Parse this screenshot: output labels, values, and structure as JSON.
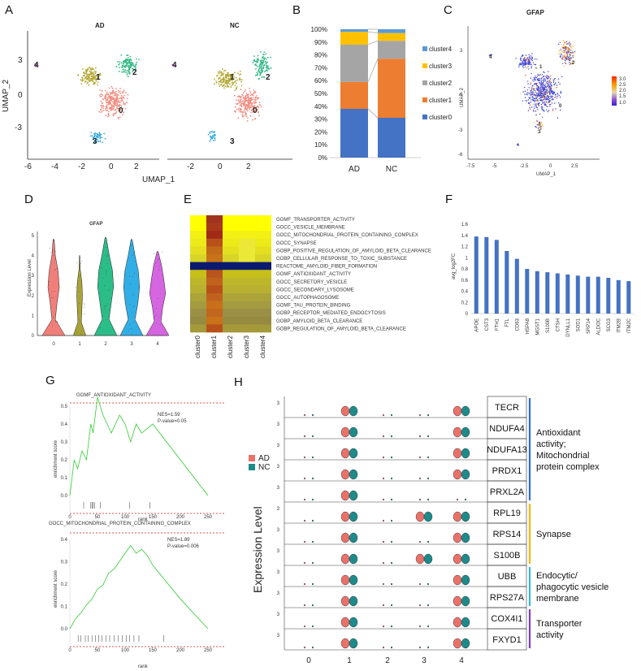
{
  "labels": {
    "A": "A",
    "B": "B",
    "C": "C",
    "D": "D",
    "E": "E",
    "F": "F",
    "G": "G",
    "H": "H"
  },
  "panelA": {
    "title_left": "AD",
    "title_right": "NC",
    "xlabel": "UMAP_1",
    "ylabel": "UMAP_2",
    "yticks": [
      "3",
      "0",
      "-3"
    ],
    "xticks_left": [
      "-6",
      "-4",
      "-2",
      "0",
      "2"
    ],
    "xticks_right": [
      "-2",
      "0",
      "2"
    ],
    "clusters": [
      "0",
      "1",
      "2",
      "3",
      "4"
    ],
    "colors": {
      "c0": "#f28e82",
      "c1": "#b5a835",
      "c2": "#2fb783",
      "c3": "#35a9de",
      "c4": "#d36fe0"
    }
  },
  "chart_data": [
    {
      "id": "B",
      "type": "bar",
      "stacked": true,
      "categories": [
        "AD",
        "NC"
      ],
      "series": [
        {
          "name": "cluster0",
          "color": "#4472c4",
          "values": [
            38,
            31
          ]
        },
        {
          "name": "cluster1",
          "color": "#ed7d31",
          "values": [
            21,
            46
          ]
        },
        {
          "name": "cluster2",
          "color": "#a5a5a5",
          "values": [
            29,
            14
          ]
        },
        {
          "name": "cluster3",
          "color": "#ffc000",
          "values": [
            10,
            6
          ]
        },
        {
          "name": "cluster4",
          "color": "#5b9bd5",
          "values": [
            2,
            3
          ]
        }
      ],
      "yticks": [
        "0%",
        "10%",
        "20%",
        "30%",
        "40%",
        "50%",
        "60%",
        "70%",
        "80%",
        "90%",
        "100%"
      ],
      "ylim": [
        0,
        100
      ]
    },
    {
      "id": "F",
      "type": "bar",
      "ylabel": "avg_log2FC",
      "categories": [
        "APOE",
        "CST3",
        "FTH1",
        "FTL",
        "CD63",
        "HSPA8",
        "MGST1",
        "S100B",
        "CTSH",
        "DYNLL1",
        "SOD1",
        "SRP14",
        "ALDOC",
        "SCG3",
        "ITM2B",
        "ITM2C"
      ],
      "values": [
        1.38,
        1.37,
        1.32,
        1.12,
        0.98,
        0.8,
        0.76,
        0.74,
        0.72,
        0.7,
        0.68,
        0.66,
        0.66,
        0.64,
        0.6,
        0.58
      ],
      "yticks": [
        "0",
        "0.2",
        "0.4",
        "0.6",
        "0.8",
        "1",
        "1.2",
        "1.4",
        "1.6"
      ],
      "ylim": [
        0,
        1.6
      ]
    }
  ],
  "panelC": {
    "title": "GFAP",
    "xlabel": "UMAP_1",
    "ylabel": "UMAP_2",
    "xticks": [
      "-7.5",
      "-5",
      "-2.5",
      "0",
      "2.5"
    ],
    "yticks": [
      "3",
      "0",
      "-3",
      "-6"
    ],
    "legend": [
      "3.0",
      "2.5",
      "2.0",
      "1.5",
      "1.0"
    ],
    "clusters": [
      "4",
      "1",
      "2",
      "0",
      "3"
    ]
  },
  "panelD": {
    "title": "GFAP",
    "ylabel": "Expression Level",
    "xticks": [
      "0",
      "1",
      "2",
      "3",
      "4"
    ],
    "yticks": [
      "0",
      "1",
      "2",
      "3",
      "4",
      "5"
    ],
    "colors": [
      "#f07f7a",
      "#a8a437",
      "#2bbd88",
      "#32aee6",
      "#d565e0"
    ]
  },
  "panelE": {
    "terms": [
      "GOMF_TRANSPORTER_ACTIVITY",
      "GOCC_VESICLE_MEMBRANE",
      "GOCC_MITOCHONDRIAL_PROTEIN_CONTAINING_COMPLEX",
      "GOCC_SYNAPSE",
      "GOBP_POSITIVE_REGULATION_OF_AMYLOID_BETA_CLEARANCE",
      "GOBP_CELLULAR_RESPONSE_TO_TOXIC_SUBSTANCE",
      "REACTOME_AMYLOID_FIBER_FORMATION",
      "GOMF_ANTIOXIDANT_ACTIVITY",
      "GOCC_SECRETORY_VESICLE",
      "GOCC_SECONDARY_LYSOSOME",
      "GOCC_AUTOPHAGOSOME",
      "GOMF_TAU_PROTEIN_BINDING",
      "GOBP_RECEPTOR_MEDIATED_ENDOCYTOSIS",
      "GOBP_AMYLOID_BETA_CLEARANCE",
      "GOBP_REGULATION_OF_AMYLOID_BETA_CLEARANCE"
    ],
    "columns": [
      "cluster0",
      "cluster1",
      "cluster2",
      "cluster3",
      "cluster4"
    ]
  },
  "panelG": {
    "top": {
      "title": "GOMF_ANTIOXIDANT_ACTIVITY",
      "nes": "NES=1.59",
      "pval": "P-value=0.05",
      "yticks": [
        "0.0",
        "0.1",
        "0.2",
        "0.3",
        "0.4",
        "0.5"
      ]
    },
    "bottom": {
      "title": "GOCC_MITOCHONDRIAL_PROTEIN_CONTAINING_COMPLEX",
      "nes": "NES=1.89",
      "pval": "P-value=0.006",
      "yticks": [
        "0.0",
        "0.1",
        "0.2",
        "0.3",
        "0.4"
      ]
    },
    "ylabel": "enrichment score",
    "xlabel": "rank",
    "xticks": [
      "0",
      "50",
      "100",
      "150",
      "200",
      "250"
    ]
  },
  "panelH": {
    "ylabel": "Expression Level",
    "legend": [
      {
        "name": "AD",
        "color": "#e8726a"
      },
      {
        "name": "NC",
        "color": "#1f8a8a"
      }
    ],
    "genes": [
      "TECR",
      "NDUFA4",
      "NDUFA13",
      "PRDX1",
      "PRXL2A",
      "RPL19",
      "RPS14",
      "S100B",
      "UBB",
      "RPS27A",
      "COX4I1",
      "FXYD1"
    ],
    "xticks": [
      "0",
      "1",
      "2",
      "3",
      "4"
    ],
    "tick": "3",
    "groups": [
      {
        "lines": [
          "Antioxidant",
          "activity;",
          "Mitochondrial",
          "protein complex"
        ],
        "color": "#2e6fd6"
      },
      {
        "lines": [
          "Synapse"
        ],
        "color": "#f2b705"
      },
      {
        "lines": [
          "Endocytic/",
          "phagocytic vesicle",
          "membrane"
        ],
        "color": "#38b6e0"
      },
      {
        "lines": [
          "Transporter",
          "activity"
        ],
        "color": "#7d3fc2"
      }
    ]
  }
}
